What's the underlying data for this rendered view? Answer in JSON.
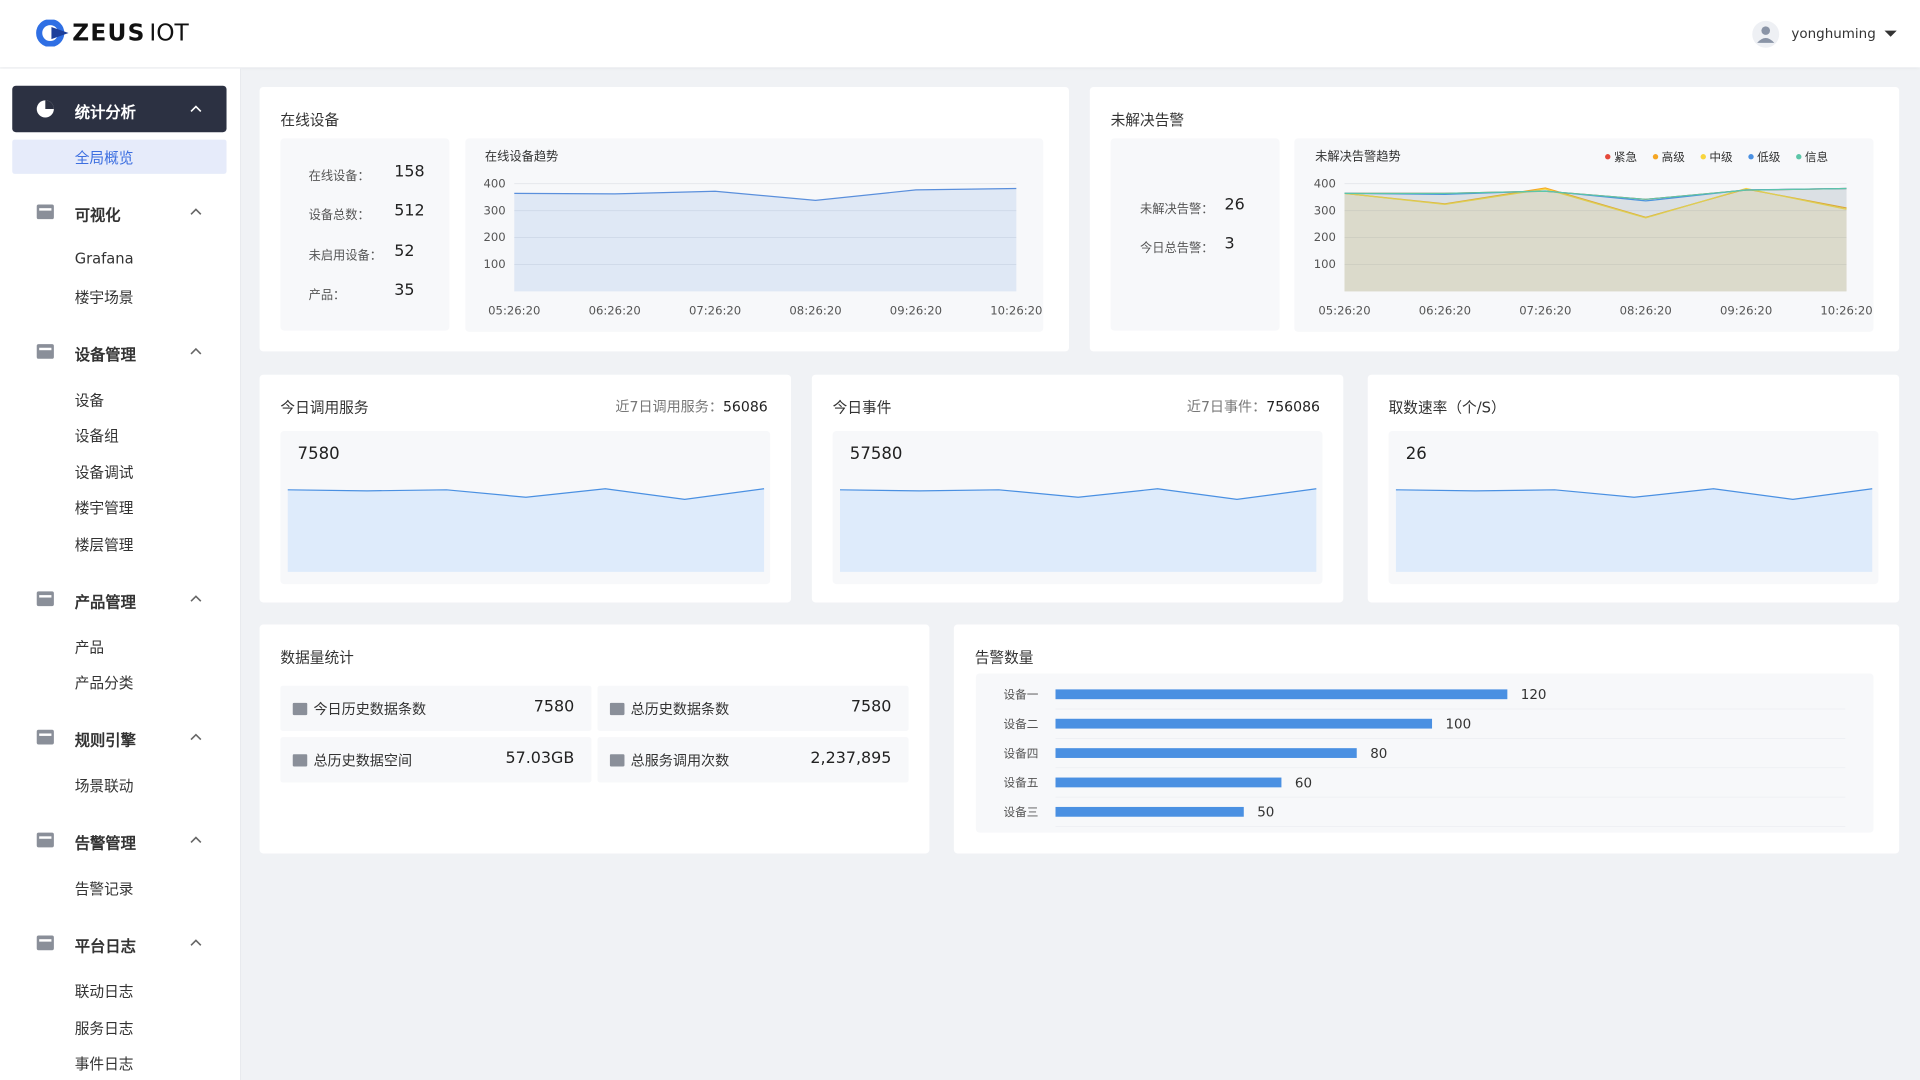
{
  "header": {
    "logo_bold": "ZEUS",
    "logo_light": "IOT",
    "user": "yonghuming"
  },
  "sidebar": {
    "groups": [
      {
        "label": "统计分析",
        "items": [
          "全局概览"
        ]
      },
      {
        "label": "可视化",
        "items": [
          "Grafana",
          "楼宇场景"
        ]
      },
      {
        "label": "设备管理",
        "items": [
          "设备",
          "设备组",
          "设备调试",
          "楼宇管理",
          "楼层管理"
        ]
      },
      {
        "label": "产品管理",
        "items": [
          "产品",
          "产品分类"
        ]
      },
      {
        "label": "规则引擎",
        "items": [
          "场景联动"
        ]
      },
      {
        "label": "告警管理",
        "items": [
          "告警记录"
        ]
      },
      {
        "label": "平台日志",
        "items": [
          "联动日志",
          "服务日志",
          "事件日志"
        ]
      }
    ]
  },
  "online_devices": {
    "title": "在线设备",
    "stats": [
      {
        "label": "在线设备：",
        "value": 158
      },
      {
        "label": "设备总数：",
        "value": 512
      },
      {
        "label": "未启用设备：",
        "value": 52
      },
      {
        "label": "产品：",
        "value": 35
      }
    ],
    "chart_data": {
      "type": "line",
      "title": "在线设备趋势",
      "x": [
        "05:26:20",
        "06:26:20",
        "07:26:20",
        "08:26:20",
        "09:26:20",
        "10:26:20"
      ],
      "series": [
        {
          "color": "#5a8fdc",
          "values": [
            364,
            362,
            372,
            338,
            377,
            382
          ]
        }
      ],
      "ylim": [
        0,
        400
      ],
      "yticks": [
        100,
        200,
        300,
        400
      ],
      "grid": true
    }
  },
  "unresolved_alarms": {
    "title": "未解决告警",
    "stats": [
      {
        "label": "未解决告警：",
        "value": 26
      },
      {
        "label": "今日总告警：",
        "value": 3
      }
    ],
    "chart_data": {
      "type": "line",
      "title": "未解决告警趋势",
      "x": [
        "05:26:20",
        "06:26:20",
        "07:26:20",
        "08:26:20",
        "09:26:20",
        "10:26:20"
      ],
      "series": [
        {
          "name": "紧急",
          "color": "#e5493a",
          "values": [
            364,
            364,
            372,
            342,
            376,
            382
          ]
        },
        {
          "name": "高级",
          "color": "#f5a623",
          "values": [
            364,
            325,
            384,
            275,
            380,
            310
          ]
        },
        {
          "name": "中级",
          "color": "#f8d53d",
          "values": [
            364,
            323,
            380,
            273,
            382,
            305
          ]
        },
        {
          "name": "低级",
          "color": "#4a90e2",
          "values": [
            364,
            360,
            373,
            336,
            377,
            382
          ]
        },
        {
          "name": "信息",
          "color": "#5cc6a8",
          "values": [
            364,
            364,
            372,
            342,
            376,
            382
          ]
        }
      ],
      "ylim": [
        0,
        400
      ],
      "yticks": [
        100,
        200,
        300,
        400
      ],
      "grid": true,
      "legend": "top-right"
    }
  },
  "services": {
    "title": "今日调用服务",
    "week_label": "近7日调用服务：",
    "week_value": 56086,
    "value": 7580,
    "chart_data": {
      "type": "area",
      "values": [
        77,
        76,
        77,
        70,
        78,
        68,
        78
      ],
      "ylim": [
        0,
        100
      ],
      "color": "#4a90e2"
    }
  },
  "events": {
    "title": "今日事件",
    "week_label": "近7日事件：",
    "week_value": 756086,
    "value": 57580,
    "chart_data": {
      "type": "area",
      "values": [
        77,
        76,
        77,
        70,
        78,
        68,
        78
      ],
      "ylim": [
        0,
        100
      ],
      "color": "#4a90e2"
    }
  },
  "fetch_rate": {
    "title": "取数速率（个/S）",
    "value": 26,
    "chart_data": {
      "type": "area",
      "values": [
        77,
        76,
        77,
        70,
        78,
        68,
        78
      ],
      "ylim": [
        0,
        100
      ],
      "color": "#4a90e2"
    }
  },
  "data_stats": {
    "title": "数据量统计",
    "items": [
      {
        "label": "今日历史数据条数",
        "value": 7580
      },
      {
        "label": "总历史数据条数",
        "value": 7580
      },
      {
        "label": "总历史数据空间",
        "value": "57.03GB"
      },
      {
        "label": "总服务调用次数",
        "value": "2,237,895"
      }
    ]
  },
  "alarm_count": {
    "title": "告警数量",
    "chart_data": {
      "type": "bar",
      "categories": [
        "设备一",
        "设备二",
        "设备四",
        "设备五",
        "设备三"
      ],
      "values": [
        120,
        100,
        80,
        60,
        50
      ],
      "xlim": [
        0,
        200
      ],
      "color": "#4a90e2"
    }
  }
}
